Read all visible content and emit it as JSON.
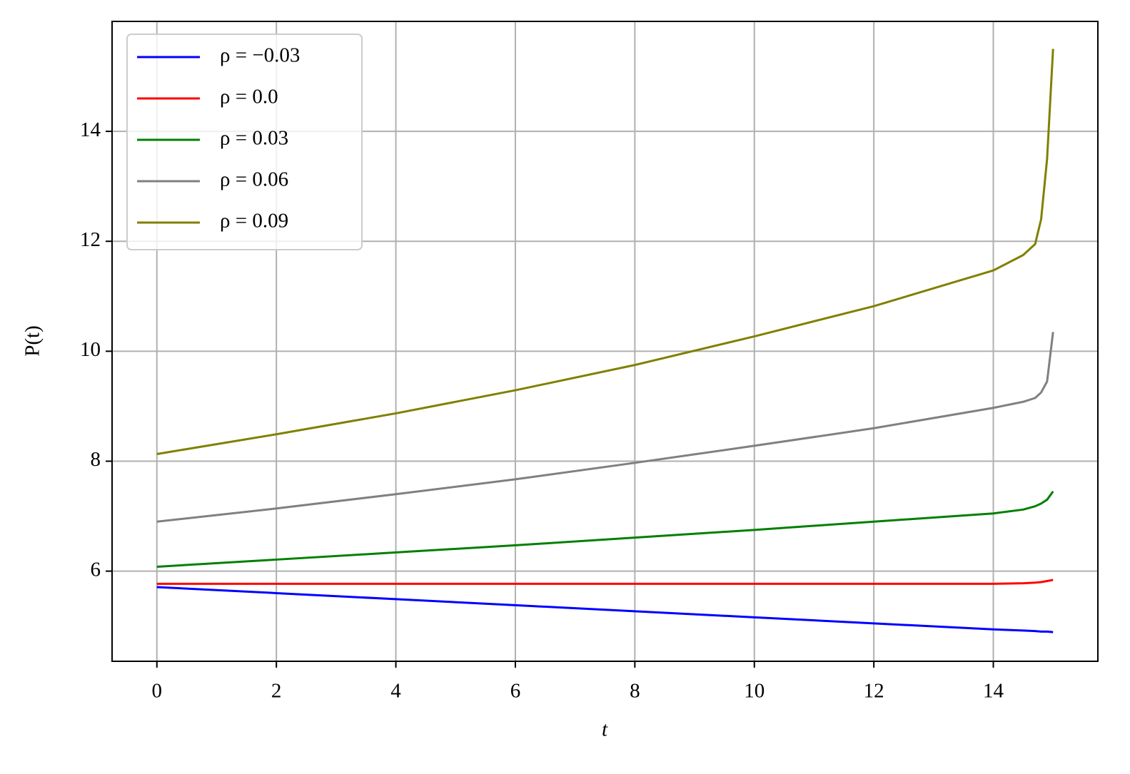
{
  "chart_data": {
    "type": "line",
    "x_label": "t",
    "y_label": "P(t)",
    "x": [
      0,
      2,
      4,
      6,
      8,
      10,
      12,
      14,
      14.5,
      14.7,
      14.8,
      14.9,
      15
    ],
    "series": [
      {
        "name": "ρ = −0.03",
        "color": "#0000ff",
        "values": [
          5.71,
          5.6,
          5.49,
          5.38,
          5.27,
          5.16,
          5.05,
          4.94,
          4.92,
          4.91,
          4.9,
          4.9,
          4.89
        ]
      },
      {
        "name": "ρ = 0.0",
        "color": "#ff0000",
        "values": [
          5.77,
          5.77,
          5.77,
          5.77,
          5.77,
          5.77,
          5.77,
          5.77,
          5.78,
          5.79,
          5.8,
          5.82,
          5.84
        ]
      },
      {
        "name": "ρ = 0.03",
        "color": "#008000",
        "values": [
          6.08,
          6.21,
          6.34,
          6.47,
          6.61,
          6.75,
          6.9,
          7.05,
          7.12,
          7.18,
          7.23,
          7.3,
          7.45
        ]
      },
      {
        "name": "ρ = 0.06",
        "color": "#808080",
        "values": [
          6.9,
          7.14,
          7.4,
          7.67,
          7.97,
          8.28,
          8.6,
          8.97,
          9.08,
          9.15,
          9.25,
          9.45,
          10.35
        ]
      },
      {
        "name": "ρ = 0.09",
        "color": "#808000",
        "values": [
          8.13,
          8.49,
          8.87,
          9.29,
          9.75,
          10.27,
          10.82,
          11.47,
          11.75,
          11.95,
          12.4,
          13.5,
          15.5
        ]
      }
    ],
    "xlim": [
      -0.75,
      15.75
    ],
    "ylim": [
      4.36,
      16.0
    ],
    "xticks": [
      0,
      2,
      4,
      6,
      8,
      10,
      12,
      14
    ],
    "yticks": [
      6,
      8,
      10,
      12,
      14
    ],
    "grid": true,
    "legend": "upper left"
  }
}
